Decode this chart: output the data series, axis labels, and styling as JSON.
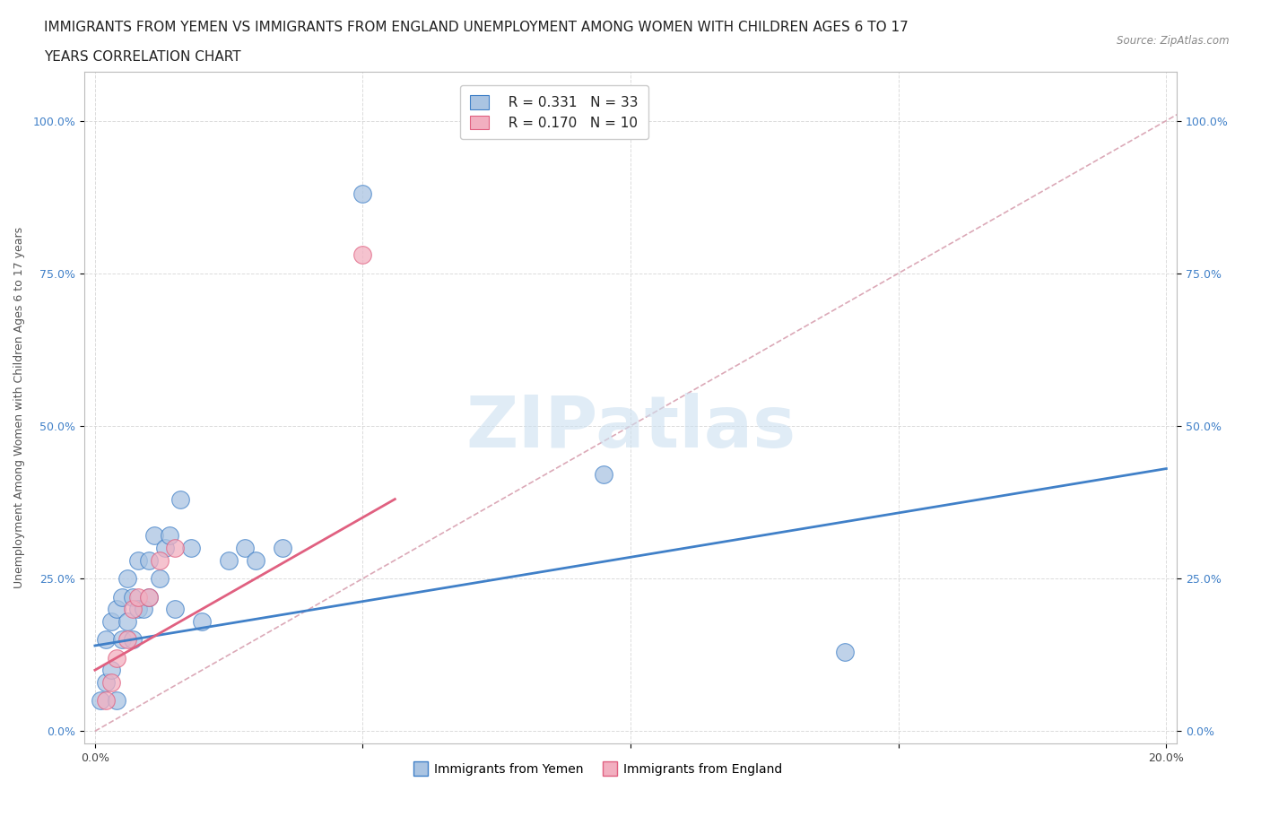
{
  "title_line1": "IMMIGRANTS FROM YEMEN VS IMMIGRANTS FROM ENGLAND UNEMPLOYMENT AMONG WOMEN WITH CHILDREN AGES 6 TO 17",
  "title_line2": "YEARS CORRELATION CHART",
  "source": "Source: ZipAtlas.com",
  "ylabel": "Unemployment Among Women with Children Ages 6 to 17 years",
  "xlim": [
    -0.002,
    0.202
  ],
  "ylim": [
    -0.02,
    1.08
  ],
  "yticks": [
    0.0,
    0.25,
    0.5,
    0.75,
    1.0
  ],
  "ytick_labels": [
    "0.0%",
    "25.0%",
    "50.0%",
    "75.0%",
    "100.0%"
  ],
  "xticks": [
    0.0,
    0.05,
    0.1,
    0.15,
    0.2
  ],
  "xtick_labels": [
    "0.0%",
    "",
    "",
    "",
    "20.0%"
  ],
  "yemen_R": "R = 0.331",
  "yemen_N": "N = 33",
  "england_R": "R = 0.170",
  "england_N": "N = 10",
  "yemen_color": "#aac4e2",
  "england_color": "#f2afc0",
  "yemen_line_color": "#4080c8",
  "england_line_color": "#e06080",
  "ref_line_color": "#d8a0b0",
  "watermark_color": "#cce0f0",
  "background_color": "#ffffff",
  "yemen_scatter_x": [
    0.001,
    0.002,
    0.002,
    0.003,
    0.003,
    0.004,
    0.004,
    0.005,
    0.005,
    0.006,
    0.006,
    0.007,
    0.007,
    0.008,
    0.008,
    0.009,
    0.01,
    0.01,
    0.011,
    0.012,
    0.013,
    0.014,
    0.015,
    0.016,
    0.018,
    0.02,
    0.025,
    0.028,
    0.03,
    0.035,
    0.05,
    0.095,
    0.14
  ],
  "yemen_scatter_y": [
    0.05,
    0.08,
    0.15,
    0.1,
    0.18,
    0.05,
    0.2,
    0.15,
    0.22,
    0.18,
    0.25,
    0.22,
    0.15,
    0.2,
    0.28,
    0.2,
    0.22,
    0.28,
    0.32,
    0.25,
    0.3,
    0.32,
    0.2,
    0.38,
    0.3,
    0.18,
    0.28,
    0.3,
    0.28,
    0.3,
    0.88,
    0.42,
    0.13
  ],
  "england_scatter_x": [
    0.002,
    0.003,
    0.004,
    0.006,
    0.007,
    0.008,
    0.01,
    0.012,
    0.015,
    0.05
  ],
  "england_scatter_y": [
    0.05,
    0.08,
    0.12,
    0.15,
    0.2,
    0.22,
    0.22,
    0.28,
    0.3,
    0.78
  ],
  "yemen_trendline_x": [
    0.0,
    0.2
  ],
  "yemen_trendline_y": [
    0.14,
    0.43
  ],
  "england_trendline_x": [
    0.0,
    0.056
  ],
  "england_trendline_y": [
    0.1,
    0.38
  ],
  "ref_line_x": [
    0.0,
    0.202
  ],
  "ref_line_y": [
    0.0,
    1.01
  ],
  "grid_color": "#cccccc",
  "dot_size": 200,
  "title_fontsize": 11,
  "axis_label_fontsize": 9,
  "tick_fontsize": 9,
  "legend_fontsize": 11
}
